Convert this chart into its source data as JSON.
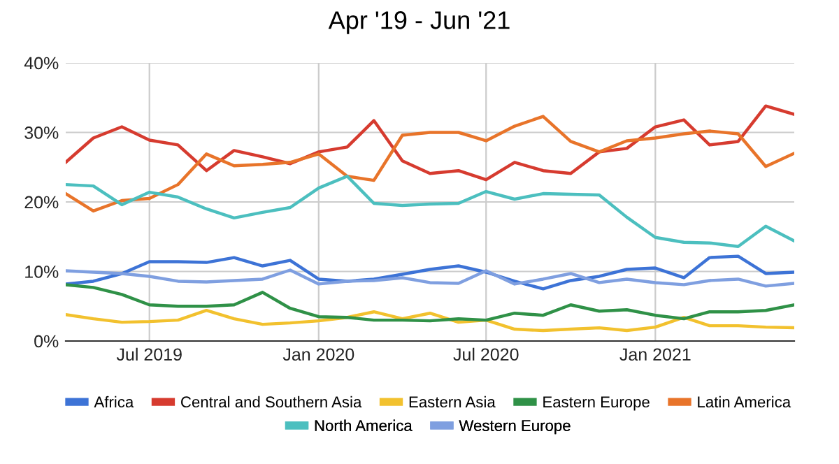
{
  "chart_data": {
    "type": "line",
    "title": "Apr '19 - Jun '21",
    "x": [
      "2019-04",
      "2019-05",
      "2019-06",
      "2019-07",
      "2019-08",
      "2019-09",
      "2019-10",
      "2019-11",
      "2019-12",
      "2020-01",
      "2020-02",
      "2020-03",
      "2020-04",
      "2020-05",
      "2020-06",
      "2020-07",
      "2020-08",
      "2020-09",
      "2020-10",
      "2020-11",
      "2020-12",
      "2021-01",
      "2021-02",
      "2021-03",
      "2021-04",
      "2021-05",
      "2021-06"
    ],
    "series": [
      {
        "name": "Africa",
        "color": "#3d73d6",
        "values": [
          8.2,
          8.6,
          9.7,
          11.4,
          11.4,
          11.3,
          12.0,
          10.8,
          11.6,
          8.9,
          8.6,
          8.9,
          9.6,
          10.3,
          10.8,
          9.9,
          8.6,
          7.5,
          8.7,
          9.3,
          10.3,
          10.5,
          9.1,
          12.0,
          12.2,
          9.7,
          9.9
        ]
      },
      {
        "name": "Central and Southern Asia",
        "color": "#d63b2f",
        "values": [
          25.7,
          29.2,
          30.8,
          28.9,
          28.2,
          24.5,
          27.4,
          26.5,
          25.5,
          27.2,
          27.9,
          31.7,
          25.9,
          24.1,
          24.5,
          23.2,
          25.7,
          24.5,
          24.1,
          27.2,
          27.7,
          30.8,
          31.8,
          28.2,
          28.7,
          33.8,
          32.6
        ]
      },
      {
        "name": "Eastern Asia",
        "color": "#f2c12e",
        "values": [
          3.8,
          3.2,
          2.7,
          2.8,
          3.0,
          4.4,
          3.2,
          2.4,
          2.6,
          2.9,
          3.4,
          4.2,
          3.2,
          4.0,
          2.7,
          3.0,
          1.7,
          1.5,
          1.7,
          1.9,
          1.5,
          2.0,
          3.4,
          2.2,
          2.2,
          2.0,
          1.9
        ]
      },
      {
        "name": "Eastern Europe",
        "color": "#2f9147",
        "values": [
          8.1,
          7.7,
          6.7,
          5.2,
          5.0,
          5.0,
          5.2,
          7.0,
          4.7,
          3.5,
          3.4,
          3.0,
          3.0,
          2.9,
          3.2,
          3.0,
          4.0,
          3.7,
          5.2,
          4.3,
          4.5,
          3.7,
          3.2,
          4.2,
          4.2,
          4.4,
          5.2
        ]
      },
      {
        "name": "Latin America",
        "color": "#e8742a",
        "values": [
          21.2,
          18.7,
          20.2,
          20.5,
          22.5,
          26.9,
          25.2,
          25.4,
          25.7,
          26.9,
          23.7,
          23.1,
          29.6,
          30.0,
          30.0,
          28.8,
          30.9,
          32.3,
          28.7,
          27.2,
          28.8,
          29.2,
          29.8,
          30.2,
          29.8,
          25.1,
          27.0
        ]
      },
      {
        "name": "North America",
        "color": "#4cbfbf",
        "values": [
          22.5,
          22.3,
          19.6,
          21.4,
          20.7,
          19.0,
          17.7,
          18.5,
          19.2,
          22.0,
          23.7,
          19.8,
          19.5,
          19.7,
          19.8,
          21.5,
          20.4,
          21.2,
          21.1,
          21.0,
          17.8,
          14.9,
          14.2,
          14.1,
          13.6,
          16.5,
          14.4
        ]
      },
      {
        "name": "Western Europe",
        "color": "#7f9fe0",
        "values": [
          10.1,
          9.9,
          9.7,
          9.3,
          8.6,
          8.5,
          8.7,
          8.9,
          10.2,
          8.2,
          8.6,
          8.7,
          9.1,
          8.4,
          8.3,
          10.1,
          8.2,
          8.9,
          9.7,
          8.4,
          8.9,
          8.4,
          8.1,
          8.7,
          8.9,
          7.9,
          8.3
        ]
      }
    ],
    "xlim": [
      "2019-04",
      "2021-06"
    ],
    "xticks": [
      {
        "value": "2019-07",
        "label": "Jul 2019"
      },
      {
        "value": "2020-01",
        "label": "Jan 2020"
      },
      {
        "value": "2020-07",
        "label": "Jul 2020"
      },
      {
        "value": "2021-01",
        "label": "Jan 2021"
      }
    ],
    "ylim": [
      0,
      40
    ],
    "yticks": [
      {
        "value": 0,
        "label": "0%"
      },
      {
        "value": 10,
        "label": "10%"
      },
      {
        "value": 20,
        "label": "20%"
      },
      {
        "value": 30,
        "label": "30%"
      },
      {
        "value": 40,
        "label": "40%"
      }
    ],
    "grid": true,
    "legend": "bottom"
  }
}
